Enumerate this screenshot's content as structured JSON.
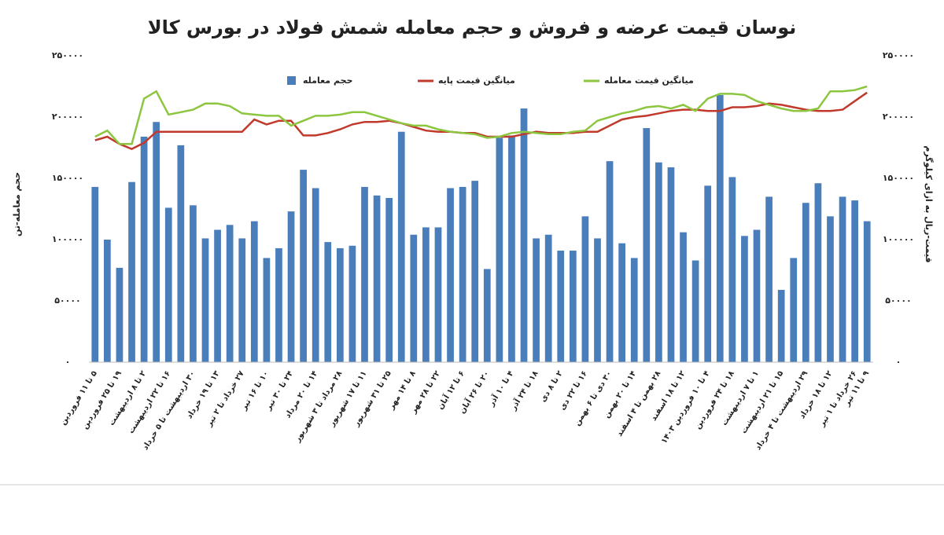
{
  "chart_data": {
    "type": "bar",
    "title": "نوسان قیمت عرضه و فروش و حجم معامله شمش فولاد در بورس کالا",
    "ylabel": "حجم معامله-تن",
    "y2label": "قیمت-ریال به ازای کیلوگرم",
    "categories": [
      "۵ تا ۱۱ فروردین",
      null,
      "۱۹ تا ۲۵ فروردین",
      null,
      "۲ تا ۸ اردیبهشت",
      null,
      "۱۶ تا ۲۲ اردیبهشت",
      null,
      "۳۰ اردیبهشت تا ۵ خرداد",
      null,
      "۱۳ تا ۱۹ خرداد",
      null,
      "۲۷ خرداد تا ۲ تیر",
      null,
      "۱۰ تا ۱۶ تیر",
      null,
      "۲۴ تا ۳۰ تیر",
      null,
      "۱۴ تا ۲۰ مرداد",
      null,
      "۲۸ مرداد تا ۳ شهریور",
      null,
      "۱۱ تا ۱۷ شهریور",
      null,
      "۲۵ تا ۳۱ شهریور",
      null,
      "۸ تا ۱۴ مهر",
      null,
      "۲۲ تا ۲۸ مهر",
      null,
      "۶ تا ۱۲ آبان",
      null,
      "۲۰ تا ۲۶ آبان",
      null,
      "۴ تا ۱۰ آذر",
      null,
      "۱۸ تا ۲۴ آذر",
      null,
      "۲ تا ۸ دی",
      null,
      "۱۶ تا ۲۲ دی",
      null,
      "۳۰ دی تا ۶ بهمن",
      null,
      "۱۴ تا ۲۰ بهمن",
      null,
      "۲۸ بهمن تا ۴ اسفند",
      null,
      "۱۲ تا ۱۸ اسفند",
      null,
      "۴ تا ۱۰ فروردین ۱۴۰۳",
      null,
      "۱۸ تا ۲۴ فروردین",
      null,
      "۱ تا ۷ اردیبهشت",
      null,
      "۱۵ تا ۲۱ اردیبهشت",
      null,
      "۲۹ اردیبهشت تا ۴ خرداد",
      null,
      "۱۲ تا ۱۸ خرداد",
      null,
      "۲۶ خرداد تا ۱ تیر",
      "۹ تا ۱۱ تیر"
    ],
    "series": [
      {
        "name": "حجم معامله",
        "type": "bar",
        "color": "#4a7ebb",
        "values": [
          143000,
          100000,
          77000,
          147000,
          184000,
          196000,
          126000,
          177000,
          128000,
          101000,
          108000,
          112000,
          101000,
          115000,
          85000,
          93000,
          123000,
          157000,
          142000,
          98000,
          93000,
          95000,
          143000,
          136000,
          134000,
          188000,
          104000,
          110000,
          110000,
          142000,
          143000,
          148000,
          76000,
          183000,
          185000,
          207000,
          101000,
          104000,
          91000,
          91000,
          119000,
          101000,
          164000,
          97000,
          85000,
          191000,
          163000,
          159000,
          106000,
          83000,
          144000,
          218000,
          151000,
          103000,
          108000,
          135000,
          59000,
          85000,
          130000,
          146000,
          119000,
          135000,
          132000,
          115000
        ]
      },
      {
        "name": "میانگین قیمت پایه",
        "type": "line",
        "axis": "y2",
        "color": "#c0392b",
        "values": [
          181000,
          184000,
          178000,
          174000,
          179000,
          188000,
          188000,
          188000,
          188000,
          188000,
          188000,
          188000,
          188000,
          198000,
          194000,
          197000,
          197000,
          185000,
          185000,
          187000,
          190000,
          194000,
          196000,
          196000,
          197000,
          195000,
          192000,
          189000,
          188000,
          188000,
          187000,
          187000,
          184000,
          184000,
          184000,
          186000,
          188000,
          187000,
          187000,
          187000,
          188000,
          188000,
          193000,
          198000,
          200000,
          201000,
          203000,
          205000,
          206000,
          206000,
          205000,
          205000,
          208000,
          208000,
          209000,
          211000,
          210000,
          208000,
          206000,
          205000,
          205000,
          206000,
          213000,
          220000
        ]
      },
      {
        "name": "میانگین قیمت معامله",
        "type": "line",
        "axis": "y2",
        "color": "#8cc63f",
        "values": [
          184000,
          189000,
          178000,
          178000,
          215000,
          221000,
          202000,
          204000,
          206000,
          211000,
          211000,
          209000,
          203000,
          202000,
          201000,
          201000,
          193000,
          197000,
          201000,
          201000,
          202000,
          204000,
          204000,
          201000,
          198000,
          195000,
          193000,
          193000,
          190000,
          188000,
          187000,
          186000,
          183000,
          184000,
          187000,
          188000,
          187000,
          186000,
          186000,
          188000,
          189000,
          197000,
          200000,
          203000,
          205000,
          208000,
          209000,
          207000,
          210000,
          205000,
          215000,
          219000,
          219000,
          218000,
          213000,
          210000,
          207000,
          205000,
          205000,
          207000,
          221000,
          221000,
          222000,
          225000
        ]
      }
    ],
    "ylim": [
      0,
      250000
    ],
    "yticks": [
      {
        "value": 0,
        "label": "۰"
      },
      {
        "value": 50000,
        "label": "۵۰۰۰۰"
      },
      {
        "value": 100000,
        "label": "۱۰۰۰۰۰"
      },
      {
        "value": 150000,
        "label": "۱۵۰۰۰۰"
      },
      {
        "value": 200000,
        "label": "۲۰۰۰۰۰"
      },
      {
        "value": 250000,
        "label": "۲۵۰۰۰۰"
      }
    ],
    "y2lim": [
      0,
      250000
    ],
    "y2ticks": [
      {
        "value": 0,
        "label": "۰"
      },
      {
        "value": 50000,
        "label": "۵۰۰۰۰"
      },
      {
        "value": 100000,
        "label": "۱۰۰۰۰۰"
      },
      {
        "value": 150000,
        "label": "۱۵۰۰۰۰"
      },
      {
        "value": 200000,
        "label": "۲۰۰۰۰۰"
      },
      {
        "value": 250000,
        "label": "۲۵۰۰۰۰"
      }
    ],
    "grid": false,
    "legend": "top"
  }
}
